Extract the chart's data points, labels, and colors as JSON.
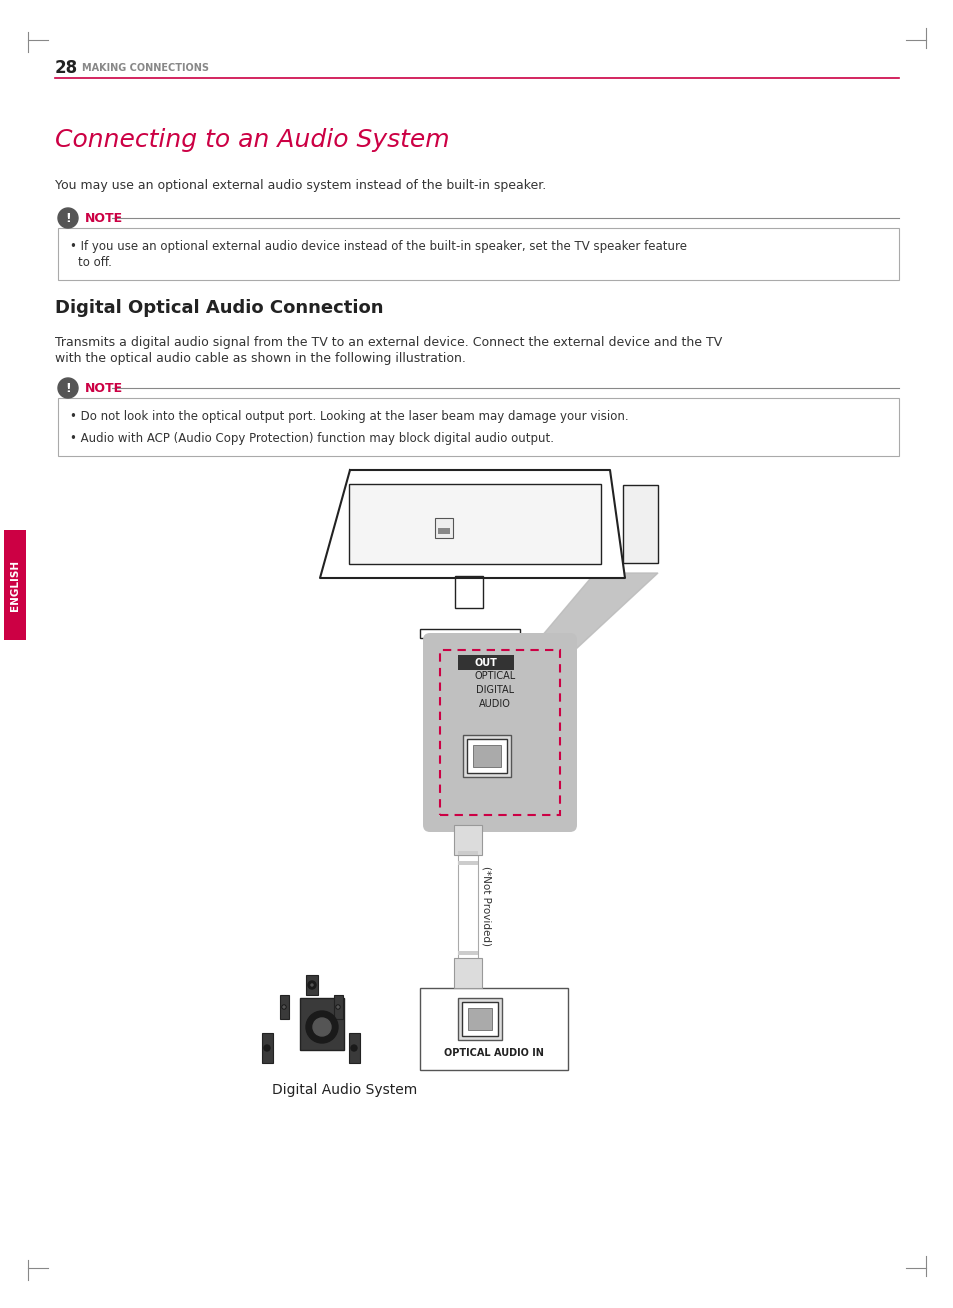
{
  "page_num": "28",
  "page_header": "MAKING CONNECTIONS",
  "title": "Connecting to an Audio System",
  "intro_text": "You may use an optional external audio system instead of the built-in speaker.",
  "note1_items": [
    "If you use an optional external audio device instead of the built-in speaker, set the TV speaker feature\n    to off."
  ],
  "section2_title": "Digital Optical Audio Connection",
  "section2_intro1": "Transmits a digital audio signal from the TV to an external device. Connect the external device and the TV",
  "section2_intro2": "with the optical audio cable as shown in the following illustration.",
  "note2_items": [
    "Do not look into the optical output port. Looking at the laser beam may damage your vision.",
    "Audio with ACP (Audio Copy Protection) function may block digital audio output."
  ],
  "diagram_caption": "Digital Audio System",
  "optical_out_label": "OUT",
  "optical_port_label": "OPTICAL\nDIGITAL\nAUDIO",
  "cable_label": "(*Not Provided)",
  "audio_in_label": "OPTICAL AUDIO IN",
  "english_label": "ENGLISH",
  "bg_color": "#ffffff",
  "header_line_color": "#cc0044",
  "title_color": "#cc0044",
  "text_color": "#333333",
  "note_color": "#cc0044",
  "english_bg": "#cc0044",
  "english_text": "#ffffff",
  "note_icon_color": "#555555",
  "box_border_color": "#aaaaaa",
  "dashed_border_color": "#cc0044",
  "tv_line_color": "#222222",
  "cable_color": "#e0e0e0",
  "speaker_color": "#333333"
}
